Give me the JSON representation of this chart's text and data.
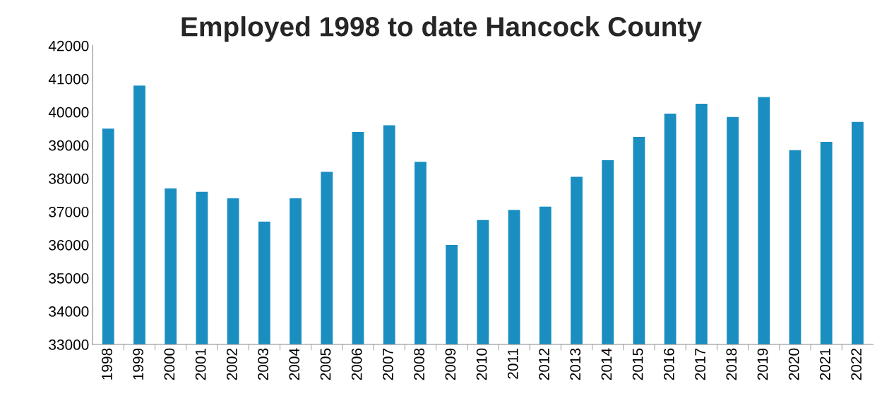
{
  "chart_data": {
    "type": "bar",
    "title": "Employed 1998 to date Hancock County",
    "categories": [
      "1998",
      "1999",
      "2000",
      "2001",
      "2002",
      "2003",
      "2004",
      "2005",
      "2006",
      "2007",
      "2008",
      "2009",
      "2010",
      "2011",
      "2012",
      "2013",
      "2014",
      "2015",
      "2016",
      "2017",
      "2018",
      "2019",
      "2020",
      "2021",
      "2022"
    ],
    "values": [
      39500,
      40800,
      37700,
      37600,
      37400,
      36700,
      37400,
      38200,
      39400,
      39600,
      38500,
      36000,
      36750,
      37050,
      37150,
      38050,
      38550,
      39250,
      39950,
      40250,
      39850,
      40450,
      38850,
      39100,
      39700
    ],
    "color": "#1a8ec0",
    "ylim": [
      33000,
      42000
    ],
    "yticks": [
      33000,
      34000,
      35000,
      36000,
      37000,
      38000,
      39000,
      40000,
      41000,
      42000
    ],
    "grid": false,
    "legend": false
  }
}
